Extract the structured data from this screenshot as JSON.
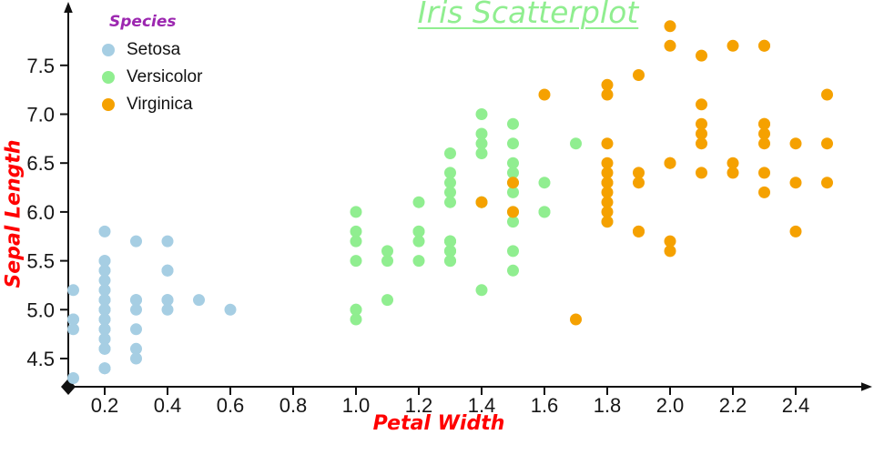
{
  "colors": {
    "title": "#90ee90",
    "axis_labels": "#ff0000",
    "legend_title": "#9c27b0",
    "axis": "#111111",
    "tick_text": "#161616"
  },
  "legend": {
    "title": "Species"
  },
  "chart_data": {
    "type": "scatter",
    "title": "Iris Scatterplot",
    "xlabel": "Petal Width",
    "ylabel": "Sepal Length",
    "xlim": [
      0.08,
      2.57
    ],
    "ylim": [
      4.25,
      8.0
    ],
    "x_ticks": [
      0.2,
      0.4,
      0.6,
      0.8,
      1.0,
      1.2,
      1.4,
      1.6,
      1.8,
      2.0,
      2.2,
      2.4
    ],
    "y_ticks": [
      4.5,
      5.0,
      5.5,
      6.0,
      6.5,
      7.0,
      7.5
    ],
    "grid": false,
    "legend_position": "top-left",
    "series": [
      {
        "name": "Setosa",
        "color": "#a6cee3",
        "points": [
          [
            0.2,
            5.1
          ],
          [
            0.2,
            4.9
          ],
          [
            0.2,
            4.7
          ],
          [
            0.2,
            4.6
          ],
          [
            0.2,
            5.0
          ],
          [
            0.4,
            5.4
          ],
          [
            0.3,
            4.6
          ],
          [
            0.2,
            5.0
          ],
          [
            0.2,
            4.4
          ],
          [
            0.1,
            4.9
          ],
          [
            0.2,
            5.4
          ],
          [
            0.2,
            4.8
          ],
          [
            0.1,
            4.8
          ],
          [
            0.1,
            4.3
          ],
          [
            0.2,
            5.8
          ],
          [
            0.4,
            5.7
          ],
          [
            0.4,
            5.4
          ],
          [
            0.3,
            5.1
          ],
          [
            0.3,
            5.7
          ],
          [
            0.3,
            5.1
          ],
          [
            0.2,
            5.4
          ],
          [
            0.4,
            5.1
          ],
          [
            0.2,
            4.6
          ],
          [
            0.5,
            5.1
          ],
          [
            0.2,
            4.8
          ],
          [
            0.2,
            5.0
          ],
          [
            0.4,
            5.0
          ],
          [
            0.2,
            5.2
          ],
          [
            0.2,
            5.2
          ],
          [
            0.2,
            4.7
          ],
          [
            0.2,
            4.8
          ],
          [
            0.4,
            5.4
          ],
          [
            0.1,
            5.2
          ],
          [
            0.2,
            5.5
          ],
          [
            0.2,
            4.9
          ],
          [
            0.2,
            5.0
          ],
          [
            0.2,
            5.5
          ],
          [
            0.1,
            4.9
          ],
          [
            0.2,
            4.4
          ],
          [
            0.2,
            5.1
          ],
          [
            0.3,
            5.0
          ],
          [
            0.3,
            4.5
          ],
          [
            0.2,
            4.4
          ],
          [
            0.6,
            5.0
          ],
          [
            0.4,
            5.1
          ],
          [
            0.3,
            4.8
          ],
          [
            0.2,
            5.1
          ],
          [
            0.2,
            4.6
          ],
          [
            0.2,
            5.3
          ],
          [
            0.2,
            5.0
          ]
        ]
      },
      {
        "name": "Versicolor",
        "color": "#90ee90",
        "points": [
          [
            1.4,
            7.0
          ],
          [
            1.5,
            6.4
          ],
          [
            1.5,
            6.9
          ],
          [
            1.3,
            5.5
          ],
          [
            1.5,
            6.5
          ],
          [
            1.3,
            5.7
          ],
          [
            1.6,
            6.3
          ],
          [
            1.0,
            4.9
          ],
          [
            1.3,
            6.6
          ],
          [
            1.4,
            5.2
          ],
          [
            1.0,
            5.0
          ],
          [
            1.5,
            5.9
          ],
          [
            1.0,
            6.0
          ],
          [
            1.4,
            6.1
          ],
          [
            1.3,
            5.6
          ],
          [
            1.4,
            6.7
          ],
          [
            1.5,
            5.6
          ],
          [
            1.0,
            5.8
          ],
          [
            1.5,
            6.2
          ],
          [
            1.1,
            5.6
          ],
          [
            1.8,
            5.9
          ],
          [
            1.3,
            6.1
          ],
          [
            1.5,
            6.3
          ],
          [
            1.2,
            6.1
          ],
          [
            1.3,
            6.4
          ],
          [
            1.4,
            6.6
          ],
          [
            1.4,
            6.8
          ],
          [
            1.7,
            6.7
          ],
          [
            1.5,
            6.0
          ],
          [
            1.0,
            5.7
          ],
          [
            1.1,
            5.5
          ],
          [
            1.0,
            5.5
          ],
          [
            1.2,
            5.8
          ],
          [
            1.6,
            6.0
          ],
          [
            1.5,
            5.4
          ],
          [
            1.6,
            6.0
          ],
          [
            1.5,
            6.7
          ],
          [
            1.3,
            6.3
          ],
          [
            1.3,
            5.6
          ],
          [
            1.3,
            5.5
          ],
          [
            1.2,
            5.5
          ],
          [
            1.4,
            6.1
          ],
          [
            1.2,
            5.8
          ],
          [
            1.0,
            5.0
          ],
          [
            1.3,
            5.6
          ],
          [
            1.2,
            5.7
          ],
          [
            1.3,
            5.7
          ],
          [
            1.3,
            6.2
          ],
          [
            1.1,
            5.1
          ],
          [
            1.3,
            5.7
          ]
        ]
      },
      {
        "name": "Virginica",
        "color": "#f5a100",
        "points": [
          [
            2.5,
            6.3
          ],
          [
            1.9,
            5.8
          ],
          [
            2.1,
            7.1
          ],
          [
            1.8,
            6.3
          ],
          [
            2.2,
            6.5
          ],
          [
            2.1,
            7.6
          ],
          [
            1.7,
            4.9
          ],
          [
            1.8,
            7.3
          ],
          [
            1.8,
            6.7
          ],
          [
            2.5,
            7.2
          ],
          [
            2.0,
            6.5
          ],
          [
            1.9,
            6.4
          ],
          [
            2.1,
            6.8
          ],
          [
            2.0,
            5.7
          ],
          [
            2.4,
            5.8
          ],
          [
            2.3,
            6.4
          ],
          [
            1.8,
            6.5
          ],
          [
            2.2,
            7.7
          ],
          [
            2.3,
            7.7
          ],
          [
            1.5,
            6.0
          ],
          [
            2.3,
            6.9
          ],
          [
            2.0,
            5.6
          ],
          [
            2.0,
            7.7
          ],
          [
            1.8,
            6.3
          ],
          [
            2.1,
            6.7
          ],
          [
            1.8,
            7.2
          ],
          [
            1.8,
            6.2
          ],
          [
            1.8,
            6.1
          ],
          [
            2.1,
            6.4
          ],
          [
            1.6,
            7.2
          ],
          [
            1.9,
            7.4
          ],
          [
            2.0,
            7.9
          ],
          [
            2.2,
            6.4
          ],
          [
            1.5,
            6.3
          ],
          [
            1.4,
            6.1
          ],
          [
            2.3,
            7.7
          ],
          [
            2.4,
            6.3
          ],
          [
            1.8,
            6.4
          ],
          [
            1.8,
            6.0
          ],
          [
            2.1,
            6.9
          ],
          [
            2.4,
            6.7
          ],
          [
            2.3,
            6.9
          ],
          [
            1.9,
            5.8
          ],
          [
            2.3,
            6.8
          ],
          [
            2.5,
            6.7
          ],
          [
            2.3,
            6.7
          ],
          [
            1.9,
            6.3
          ],
          [
            2.0,
            6.5
          ],
          [
            2.3,
            6.2
          ],
          [
            1.8,
            5.9
          ]
        ]
      }
    ]
  }
}
